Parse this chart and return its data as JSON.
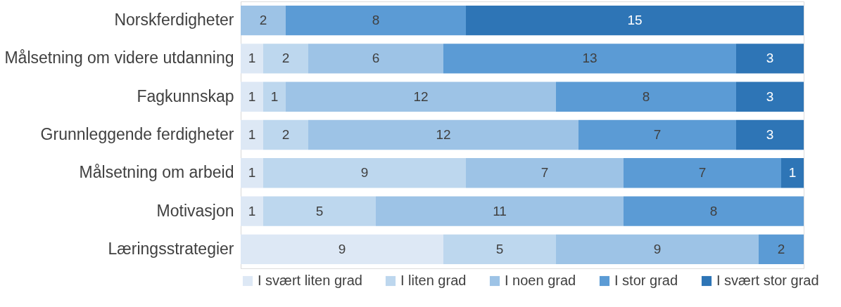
{
  "chart_data": {
    "type": "bar",
    "orientation": "horizontal",
    "stacked": true,
    "data_labels": true,
    "legend": "bottom",
    "xlim": [
      0,
      25
    ],
    "tick_labels": "y",
    "categories": [
      "Norskferdigheter",
      "Målsetning om videre utdanning",
      "Fagkunnskap",
      "Grunnleggende ferdigheter",
      "Målsetning om arbeid",
      "Motivasjon",
      "Læringsstrategier"
    ],
    "series": [
      {
        "name": "I svært liten grad",
        "color": "#dde8f5",
        "values": [
          null,
          1,
          1,
          1,
          1,
          1,
          9
        ]
      },
      {
        "name": "I liten grad",
        "color": "#bdd7ee",
        "values": [
          null,
          2,
          1,
          2,
          9,
          5,
          5
        ]
      },
      {
        "name": "I noen grad",
        "color": "#9dc3e6",
        "values": [
          2,
          6,
          12,
          12,
          7,
          11,
          9
        ]
      },
      {
        "name": "I stor grad",
        "color": "#5b9bd5",
        "values": [
          8,
          13,
          8,
          7,
          7,
          8,
          2
        ]
      },
      {
        "name": "I svært stor grad",
        "color": "#2e75b6",
        "values": [
          15,
          3,
          3,
          3,
          1,
          null,
          null
        ]
      }
    ]
  }
}
